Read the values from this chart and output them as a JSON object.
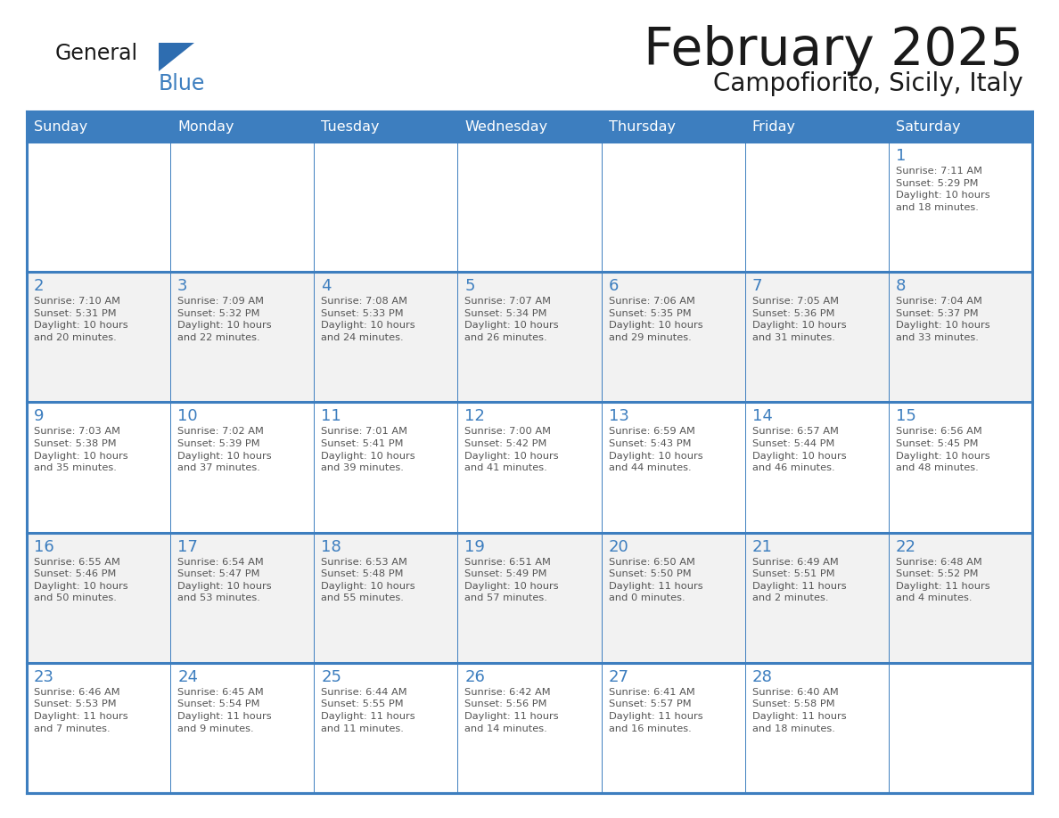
{
  "title": "February 2025",
  "subtitle": "Campofiorito, Sicily, Italy",
  "header_bg_color": "#3d7ebf",
  "header_text_color": "#ffffff",
  "white_row_bg": "#ffffff",
  "gray_row_bg": "#f2f2f2",
  "border_color": "#3d7ebf",
  "row_separator_color": "#3d7ebf",
  "days_of_week": [
    "Sunday",
    "Monday",
    "Tuesday",
    "Wednesday",
    "Thursday",
    "Friday",
    "Saturday"
  ],
  "title_color": "#1a1a1a",
  "subtitle_color": "#1a1a1a",
  "day_text_color": "#3d7ebf",
  "info_text_color": "#555555",
  "logo_text_color": "#1a1a1a",
  "logo_blue_color": "#3d7ebf",
  "logo_triangle_color": "#2e6db0",
  "calendar_data": [
    [
      {
        "day": "",
        "info": ""
      },
      {
        "day": "",
        "info": ""
      },
      {
        "day": "",
        "info": ""
      },
      {
        "day": "",
        "info": ""
      },
      {
        "day": "",
        "info": ""
      },
      {
        "day": "",
        "info": ""
      },
      {
        "day": "1",
        "info": "Sunrise: 7:11 AM\nSunset: 5:29 PM\nDaylight: 10 hours\nand 18 minutes."
      }
    ],
    [
      {
        "day": "2",
        "info": "Sunrise: 7:10 AM\nSunset: 5:31 PM\nDaylight: 10 hours\nand 20 minutes."
      },
      {
        "day": "3",
        "info": "Sunrise: 7:09 AM\nSunset: 5:32 PM\nDaylight: 10 hours\nand 22 minutes."
      },
      {
        "day": "4",
        "info": "Sunrise: 7:08 AM\nSunset: 5:33 PM\nDaylight: 10 hours\nand 24 minutes."
      },
      {
        "day": "5",
        "info": "Sunrise: 7:07 AM\nSunset: 5:34 PM\nDaylight: 10 hours\nand 26 minutes."
      },
      {
        "day": "6",
        "info": "Sunrise: 7:06 AM\nSunset: 5:35 PM\nDaylight: 10 hours\nand 29 minutes."
      },
      {
        "day": "7",
        "info": "Sunrise: 7:05 AM\nSunset: 5:36 PM\nDaylight: 10 hours\nand 31 minutes."
      },
      {
        "day": "8",
        "info": "Sunrise: 7:04 AM\nSunset: 5:37 PM\nDaylight: 10 hours\nand 33 minutes."
      }
    ],
    [
      {
        "day": "9",
        "info": "Sunrise: 7:03 AM\nSunset: 5:38 PM\nDaylight: 10 hours\nand 35 minutes."
      },
      {
        "day": "10",
        "info": "Sunrise: 7:02 AM\nSunset: 5:39 PM\nDaylight: 10 hours\nand 37 minutes."
      },
      {
        "day": "11",
        "info": "Sunrise: 7:01 AM\nSunset: 5:41 PM\nDaylight: 10 hours\nand 39 minutes."
      },
      {
        "day": "12",
        "info": "Sunrise: 7:00 AM\nSunset: 5:42 PM\nDaylight: 10 hours\nand 41 minutes."
      },
      {
        "day": "13",
        "info": "Sunrise: 6:59 AM\nSunset: 5:43 PM\nDaylight: 10 hours\nand 44 minutes."
      },
      {
        "day": "14",
        "info": "Sunrise: 6:57 AM\nSunset: 5:44 PM\nDaylight: 10 hours\nand 46 minutes."
      },
      {
        "day": "15",
        "info": "Sunrise: 6:56 AM\nSunset: 5:45 PM\nDaylight: 10 hours\nand 48 minutes."
      }
    ],
    [
      {
        "day": "16",
        "info": "Sunrise: 6:55 AM\nSunset: 5:46 PM\nDaylight: 10 hours\nand 50 minutes."
      },
      {
        "day": "17",
        "info": "Sunrise: 6:54 AM\nSunset: 5:47 PM\nDaylight: 10 hours\nand 53 minutes."
      },
      {
        "day": "18",
        "info": "Sunrise: 6:53 AM\nSunset: 5:48 PM\nDaylight: 10 hours\nand 55 minutes."
      },
      {
        "day": "19",
        "info": "Sunrise: 6:51 AM\nSunset: 5:49 PM\nDaylight: 10 hours\nand 57 minutes."
      },
      {
        "day": "20",
        "info": "Sunrise: 6:50 AM\nSunset: 5:50 PM\nDaylight: 11 hours\nand 0 minutes."
      },
      {
        "day": "21",
        "info": "Sunrise: 6:49 AM\nSunset: 5:51 PM\nDaylight: 11 hours\nand 2 minutes."
      },
      {
        "day": "22",
        "info": "Sunrise: 6:48 AM\nSunset: 5:52 PM\nDaylight: 11 hours\nand 4 minutes."
      }
    ],
    [
      {
        "day": "23",
        "info": "Sunrise: 6:46 AM\nSunset: 5:53 PM\nDaylight: 11 hours\nand 7 minutes."
      },
      {
        "day": "24",
        "info": "Sunrise: 6:45 AM\nSunset: 5:54 PM\nDaylight: 11 hours\nand 9 minutes."
      },
      {
        "day": "25",
        "info": "Sunrise: 6:44 AM\nSunset: 5:55 PM\nDaylight: 11 hours\nand 11 minutes."
      },
      {
        "day": "26",
        "info": "Sunrise: 6:42 AM\nSunset: 5:56 PM\nDaylight: 11 hours\nand 14 minutes."
      },
      {
        "day": "27",
        "info": "Sunrise: 6:41 AM\nSunset: 5:57 PM\nDaylight: 11 hours\nand 16 minutes."
      },
      {
        "day": "28",
        "info": "Sunrise: 6:40 AM\nSunset: 5:58 PM\nDaylight: 11 hours\nand 18 minutes."
      },
      {
        "day": "",
        "info": ""
      }
    ]
  ]
}
